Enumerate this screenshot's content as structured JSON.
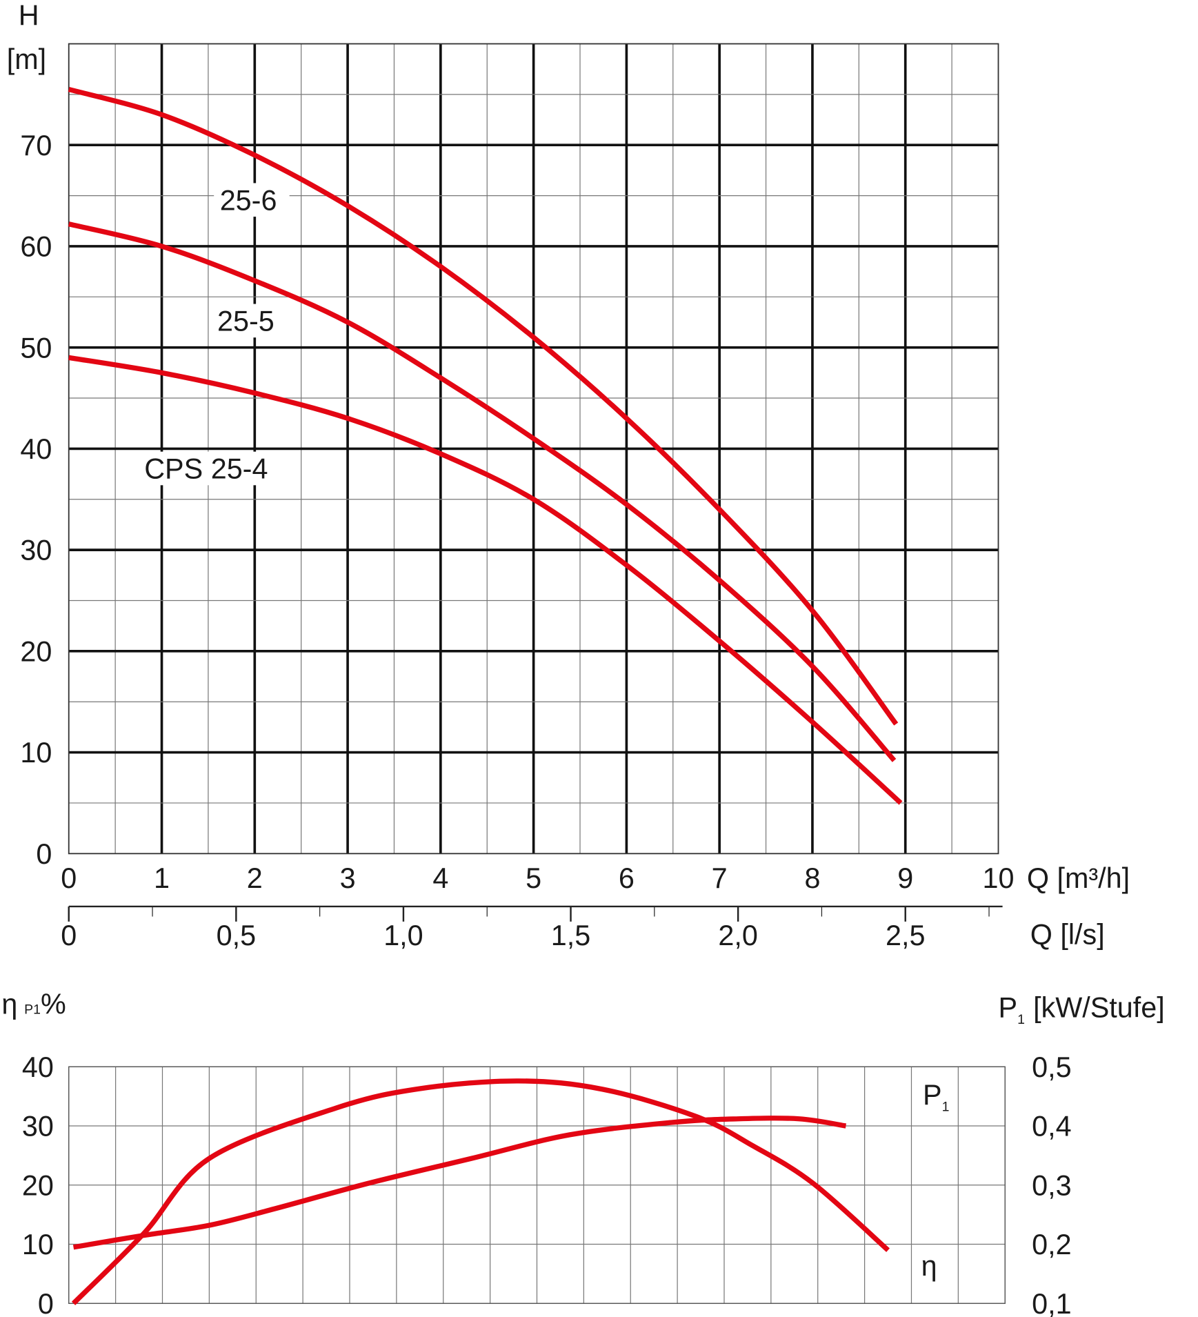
{
  "chart_data": [
    {
      "type": "line",
      "ylabel_line1": "H",
      "ylabel_line2": "[m]",
      "xlabel": "Q [m³/h]",
      "xlabel2": "Q [l/s]",
      "xlim": [
        0,
        10
      ],
      "ylim": [
        0,
        80
      ],
      "grid": true,
      "x_ticks": [
        "0",
        "1",
        "2",
        "3",
        "4",
        "5",
        "6",
        "7",
        "8",
        "9",
        "10"
      ],
      "y_ticks": [
        "0",
        "10",
        "20",
        "30",
        "40",
        "50",
        "60",
        "70"
      ],
      "x2_ticks": [
        "0",
        "0,5",
        "1,0",
        "1,5",
        "2,0",
        "2,5"
      ],
      "x2_tick_values": [
        0,
        0.5,
        1.0,
        1.5,
        2.0,
        2.5
      ],
      "line_color": "#e30613",
      "series": [
        {
          "name": "25-6",
          "x": [
            0,
            1,
            2,
            3,
            4,
            5,
            6,
            7,
            8,
            8.9
          ],
          "y": [
            75.5,
            73,
            69,
            64,
            58,
            51,
            43,
            34,
            24,
            12.8
          ]
        },
        {
          "name": "25-5",
          "x": [
            0,
            1,
            2,
            3,
            4,
            5,
            6,
            7,
            8,
            8.88
          ],
          "y": [
            62.2,
            60,
            56.6,
            52.5,
            47,
            41,
            34.5,
            27,
            18.5,
            9.2
          ]
        },
        {
          "name": "CPS 25-4",
          "x": [
            0,
            1,
            2,
            3,
            4,
            5,
            6,
            7,
            8,
            8.95
          ],
          "y": [
            49,
            47.5,
            45.5,
            43,
            39.5,
            35,
            28.5,
            21,
            13,
            5
          ]
        }
      ]
    },
    {
      "type": "line",
      "ylabel_left": "η",
      "ylabel_left_sub": "P1",
      "ylabel_left_unit": "%",
      "ylabel_right": "P",
      "ylabel_right_sub": "1",
      "ylabel_right_unit": "[kW/Stufe]",
      "xlim": [
        0,
        10
      ],
      "ylim_left": [
        0,
        40
      ],
      "ylim_right": [
        0.1,
        0.5
      ],
      "grid": true,
      "y_ticks_left": [
        "0",
        "10",
        "20",
        "30",
        "40"
      ],
      "y_ticks_right": [
        "0,1",
        "0,2",
        "0,3",
        "0,4",
        "0,5"
      ],
      "line_color": "#e30613",
      "series": [
        {
          "name": "η",
          "axis": "left",
          "x": [
            0.05,
            0.8,
            1.5,
            2.85,
            3.75,
            4.8,
            5.7,
            6.7,
            7.3,
            7.95,
            8.75
          ],
          "y": [
            0,
            11.8,
            24.5,
            33,
            36.3,
            37.6,
            36.2,
            31.6,
            26.7,
            20.3,
            9
          ]
        },
        {
          "name": "P",
          "name_sub": "1",
          "axis": "right",
          "x": [
            0.05,
            0.8,
            1.5,
            2.2,
            3.2,
            4.3,
            5.35,
            6.45,
            7.15,
            7.8,
            8.3
          ],
          "y": [
            0.195,
            0.215,
            0.232,
            0.26,
            0.303,
            0.345,
            0.385,
            0.406,
            0.412,
            0.412,
            0.4
          ]
        }
      ]
    }
  ]
}
